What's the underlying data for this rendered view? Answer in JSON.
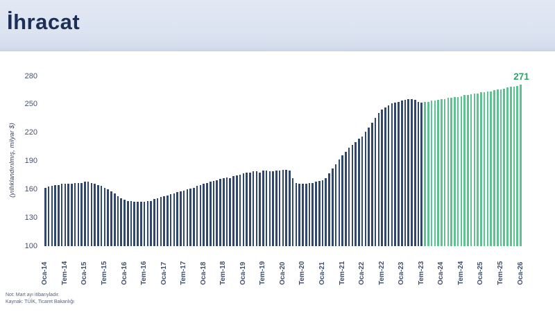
{
  "header": {
    "title": "İhracat"
  },
  "footnotes": {
    "note": "Not: Mart ayı itibarıyladır.",
    "source": "Kaynak: TÜİK, Ticaret Bakanlığı"
  },
  "chart_data": {
    "type": "bar",
    "title": "İhracat",
    "ylabel": "(yıllıklandırılmış, milyar $)",
    "xlabel": "",
    "ylim": [
      100,
      280
    ],
    "yticks": [
      100,
      130,
      160,
      190,
      220,
      250,
      280
    ],
    "grid": false,
    "legend": "none",
    "x_unit": "month",
    "xtick_labels": [
      "Oca-14",
      "Tem-14",
      "Oca-15",
      "Tem-15",
      "Oca-16",
      "Tem-16",
      "Oca-17",
      "Tem-17",
      "Oca-18",
      "Tem-18",
      "Oca-19",
      "Tem-19",
      "Oca-20",
      "Tem-20",
      "Oca-21",
      "Tem-21",
      "Oca-22",
      "Tem-22",
      "Oca-23",
      "Tem-23",
      "Oca-24",
      "Tem-24",
      "Oca-25",
      "Tem-25",
      "Oca-26"
    ],
    "xtick_every_n_bars": 6,
    "series": [
      {
        "name": "navy",
        "color": "#31466b",
        "first_month": "Oca-14",
        "last_month": "Tem-23",
        "values": [
          162,
          163,
          164,
          165,
          165,
          166,
          166,
          166,
          166,
          167,
          167,
          167,
          168,
          168,
          167,
          166,
          165,
          164,
          162,
          160,
          158,
          156,
          153,
          151,
          149,
          148,
          148,
          147,
          147,
          147,
          147,
          148,
          148,
          150,
          151,
          152,
          153,
          154,
          155,
          156,
          157,
          158,
          159,
          160,
          161,
          162,
          164,
          165,
          166,
          167,
          168,
          169,
          170,
          171,
          172,
          173,
          172,
          174,
          175,
          176,
          177,
          178,
          178,
          179,
          179,
          178,
          180,
          180,
          179,
          179,
          180,
          180,
          181,
          181,
          180,
          172,
          167,
          166,
          166,
          166,
          167,
          167,
          168,
          169,
          170,
          172,
          177,
          182,
          187,
          192,
          196,
          200,
          204,
          207,
          210,
          214,
          216,
          221,
          226,
          231,
          236,
          241,
          245,
          247,
          249,
          251,
          252,
          253,
          254,
          255,
          256,
          256,
          255,
          253,
          252
        ]
      },
      {
        "name": "green",
        "color": "#5cc28f",
        "first_month": "Ağu-23",
        "last_month": "Oca-26",
        "values": [
          253,
          253,
          254,
          254,
          255,
          256,
          256,
          257,
          257,
          258,
          258,
          259,
          260,
          260,
          261,
          262,
          262,
          263,
          263,
          264,
          264,
          265,
          266,
          266,
          267,
          268,
          269,
          269,
          270,
          271
        ]
      }
    ],
    "last_value_label": "271",
    "last_value_color": "#2fa269"
  }
}
